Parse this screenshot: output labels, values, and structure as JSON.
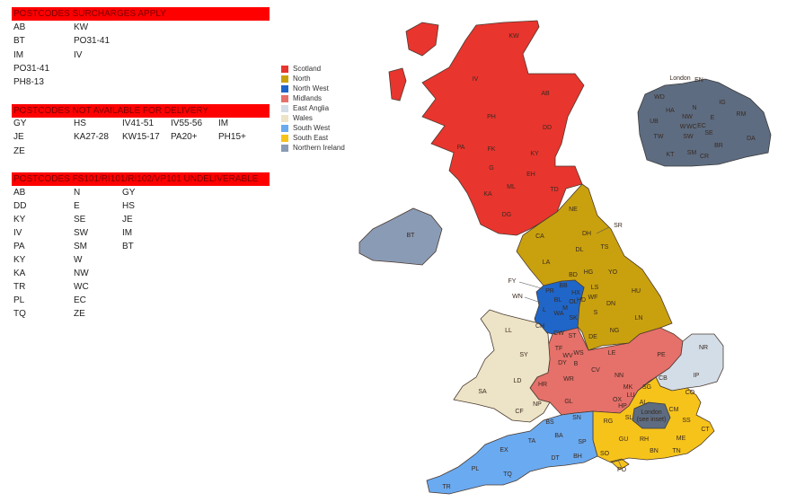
{
  "tables": [
    {
      "title": "POSTCODES SURCHARGES APPLY",
      "rows": [
        [
          "AB",
          "KW"
        ],
        [
          "BT",
          "PO31-41"
        ],
        [
          "IM",
          "IV"
        ],
        [
          "PO31-41"
        ],
        [
          "PH8-13"
        ]
      ]
    },
    {
      "title": "POSTCODES NOT AVAILABLE FOR DELIVERY",
      "rows": [
        [
          "GY",
          "HS",
          "IV41-51",
          "IV55-56",
          "IM"
        ],
        [
          "JE",
          "KA27-28",
          "KW15-17",
          "PA20+",
          "PH15+"
        ],
        [
          "ZE"
        ]
      ]
    },
    {
      "title": "POSTCODES FS101/RI101/RI102/VP101 UNDELIVERABLE",
      "rows": [
        [
          "AB",
          "N",
          "GY"
        ],
        [
          "DD",
          "E",
          "HS"
        ],
        [
          "KY",
          "SE",
          "JE"
        ],
        [
          "IV",
          "SW",
          "IM"
        ],
        [
          "PA",
          "SM",
          "BT"
        ],
        [
          "KY",
          "W"
        ],
        [
          "KA",
          "NW"
        ],
        [
          "TR",
          "WC"
        ],
        [
          "PL",
          "EC"
        ],
        [
          "TQ",
          "ZE"
        ]
      ]
    }
  ],
  "legend": [
    {
      "name": "Scotland",
      "color": "#e8352e"
    },
    {
      "name": "North",
      "color": "#c9a10e"
    },
    {
      "name": "North West",
      "color": "#1f66c8"
    },
    {
      "name": "Midlands",
      "color": "#e6706a"
    },
    {
      "name": "East Anglia",
      "color": "#d3dde7"
    },
    {
      "name": "Wales",
      "color": "#ede3c6"
    },
    {
      "name": "South West",
      "color": "#6aaaf0"
    },
    {
      "name": "South East",
      "color": "#f6c31a"
    },
    {
      "name": "Northern Ireland",
      "color": "#8a9bb5"
    }
  ],
  "map": {
    "london_color": "#5d6c81",
    "london_label": "London (see inset)",
    "inset_title": "London",
    "regions": {
      "scotland": [
        "KW",
        "IV",
        "AB",
        "PH",
        "DD",
        "PA",
        "FK",
        "KY",
        "G",
        "EH",
        "ML",
        "KA",
        "TD",
        "DG"
      ],
      "north": [
        "NE",
        "SR",
        "DH",
        "CA",
        "DL",
        "TS",
        "LA",
        "BD",
        "HG",
        "YO",
        "LS",
        "HX",
        "HD",
        "WF",
        "HU",
        "DN",
        "S",
        "DE",
        "NG",
        "LN"
      ],
      "north_west": [
        "FY",
        "PR",
        "BB",
        "WN",
        "WA",
        "M",
        "SK",
        "CH",
        "CW",
        "L",
        "BL",
        "OL"
      ],
      "midlands": [
        "ST",
        "TF",
        "WV",
        "WS",
        "DY",
        "B",
        "WR",
        "HR",
        "CV",
        "LE",
        "NN",
        "MK",
        "PE",
        "GL",
        "OX"
      ],
      "wales": [
        "LL",
        "SY",
        "LD",
        "SA",
        "NP",
        "CF"
      ],
      "east_anglia": [
        "NR",
        "IP",
        "CB"
      ],
      "south_east": [
        "SG",
        "LU",
        "AL",
        "CO",
        "HP",
        "CM",
        "SS",
        "SL",
        "RG",
        "ME",
        "CT",
        "GU",
        "RH",
        "TN",
        "SO",
        "BN",
        "PO"
      ],
      "south_west": [
        "SN",
        "BS",
        "BA",
        "SP",
        "TA",
        "EX",
        "DT",
        "BH",
        "PL",
        "TQ",
        "TR"
      ],
      "northern_ireland": [
        "BT"
      ],
      "london_inset": [
        "WD",
        "EN",
        "IG",
        "HA",
        "N",
        "RM",
        "UB",
        "NW",
        "E",
        "W",
        "WC",
        "EC",
        "SE",
        "TW",
        "SW",
        "DA",
        "BR",
        "KT",
        "SM",
        "CR"
      ]
    }
  }
}
